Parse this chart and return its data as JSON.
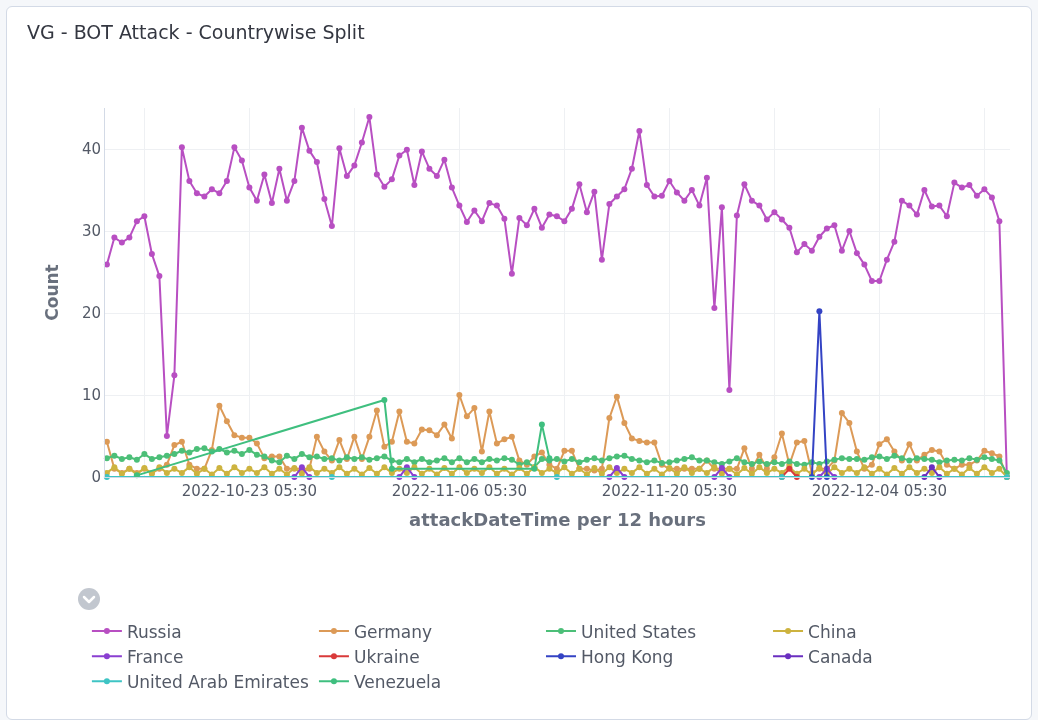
{
  "chart_data": {
    "type": "line",
    "title": "VG - BOT Attack - Countrywise Split",
    "xlabel": "attackDateTime per 12 hours",
    "ylabel": "Count",
    "x": [
      "2022-10-13T17:30",
      "2022-10-14T05:30",
      "2022-10-14T17:30",
      "2022-10-15T05:30",
      "2022-10-15T17:30",
      "2022-10-16T05:30",
      "2022-10-16T17:30",
      "2022-10-17T05:30",
      "2022-10-17T17:30",
      "2022-10-18T05:30",
      "2022-10-18T17:30",
      "2022-10-19T05:30",
      "2022-10-19T17:30",
      "2022-10-20T05:30",
      "2022-10-20T17:30",
      "2022-10-21T05:30",
      "2022-10-21T17:30",
      "2022-10-22T05:30",
      "2022-10-22T17:30",
      "2022-10-23T05:30",
      "2022-10-23T17:30",
      "2022-10-24T05:30",
      "2022-10-24T17:30",
      "2022-10-25T05:30",
      "2022-10-25T17:30",
      "2022-10-26T05:30",
      "2022-10-26T17:30",
      "2022-10-27T05:30",
      "2022-10-27T17:30",
      "2022-10-28T05:30",
      "2022-10-28T17:30",
      "2022-10-29T05:30",
      "2022-10-29T17:30",
      "2022-10-30T05:30",
      "2022-10-30T17:30",
      "2022-10-31T05:30",
      "2022-10-31T17:30",
      "2022-11-01T05:30",
      "2022-11-01T17:30",
      "2022-11-02T05:30",
      "2022-11-02T17:30",
      "2022-11-03T05:30",
      "2022-11-03T17:30",
      "2022-11-04T05:30",
      "2022-11-04T17:30",
      "2022-11-05T05:30",
      "2022-11-05T17:30",
      "2022-11-06T05:30",
      "2022-11-06T17:30",
      "2022-11-07T05:30",
      "2022-11-07T17:30",
      "2022-11-08T05:30",
      "2022-11-08T17:30",
      "2022-11-09T05:30",
      "2022-11-09T17:30",
      "2022-11-10T05:30",
      "2022-11-10T17:30",
      "2022-11-11T05:30",
      "2022-11-11T17:30",
      "2022-11-12T05:30",
      "2022-11-12T17:30",
      "2022-11-13T05:30",
      "2022-11-13T17:30",
      "2022-11-14T05:30",
      "2022-11-14T17:30",
      "2022-11-15T05:30",
      "2022-11-15T17:30",
      "2022-11-16T05:30",
      "2022-11-16T17:30",
      "2022-11-17T05:30",
      "2022-11-17T17:30",
      "2022-11-18T05:30",
      "2022-11-18T17:30",
      "2022-11-19T05:30",
      "2022-11-19T17:30",
      "2022-11-20T05:30",
      "2022-11-20T17:30",
      "2022-11-21T05:30",
      "2022-11-21T17:30",
      "2022-11-22T05:30",
      "2022-11-22T17:30",
      "2022-11-23T05:30",
      "2022-11-23T17:30",
      "2022-11-24T05:30",
      "2022-11-24T17:30",
      "2022-11-25T05:30",
      "2022-11-25T17:30",
      "2022-11-26T05:30",
      "2022-11-26T17:30",
      "2022-11-27T05:30",
      "2022-11-27T17:30",
      "2022-11-28T05:30",
      "2022-11-28T17:30",
      "2022-11-29T05:30",
      "2022-11-29T17:30",
      "2022-11-30T05:30",
      "2022-11-30T17:30",
      "2022-12-01T05:30",
      "2022-12-01T17:30",
      "2022-12-02T05:30",
      "2022-12-02T17:30",
      "2022-12-03T05:30",
      "2022-12-03T17:30",
      "2022-12-04T05:30",
      "2022-12-04T17:30",
      "2022-12-05T05:30",
      "2022-12-05T17:30",
      "2022-12-06T05:30",
      "2022-12-06T17:30",
      "2022-12-07T05:30",
      "2022-12-07T17:30",
      "2022-12-08T05:30",
      "2022-12-08T17:30",
      "2022-12-09T05:30",
      "2022-12-09T17:30",
      "2022-12-10T05:30",
      "2022-12-10T17:30",
      "2022-12-11T05:30",
      "2022-12-11T17:30",
      "2022-12-12T05:30",
      "2022-12-12T17:30"
    ],
    "series": [
      {
        "name": "Russia",
        "color": "#b84fc2",
        "values": [
          25.9,
          29.2,
          28.6,
          29.2,
          31.2,
          31.8,
          27.2,
          24.5,
          5.0,
          12.4,
          40.2,
          36.1,
          34.6,
          34.2,
          35.1,
          34.6,
          36.1,
          40.2,
          38.6,
          35.3,
          33.7,
          36.9,
          33.4,
          37.6,
          33.7,
          36.1,
          42.6,
          39.8,
          38.4,
          33.9,
          30.6,
          40.1,
          36.7,
          38.0,
          40.8,
          43.9,
          36.9,
          35.4,
          36.3,
          39.2,
          39.9,
          35.6,
          39.7,
          37.6,
          36.7,
          38.7,
          35.3,
          33.1,
          31.1,
          32.5,
          31.2,
          33.4,
          33.1,
          31.5,
          24.8,
          31.6,
          30.7,
          32.7,
          30.4,
          32.0,
          31.8,
          31.2,
          32.7,
          35.7,
          32.3,
          34.8,
          26.5,
          33.3,
          34.2,
          35.1,
          37.6,
          42.2,
          35.6,
          34.2,
          34.3,
          36.1,
          34.7,
          33.7,
          35.0,
          33.1,
          36.5,
          20.6,
          32.9,
          10.6,
          31.9,
          35.7,
          33.7,
          33.1,
          31.4,
          32.3,
          31.4,
          30.4,
          27.4,
          28.4,
          27.6,
          29.3,
          30.3,
          30.7,
          27.6,
          30.0,
          27.3,
          25.9,
          23.9,
          23.9,
          26.5,
          28.7,
          33.7,
          33.1,
          32.0,
          35.0,
          33.0,
          33.1,
          31.8,
          35.9,
          35.3,
          35.6,
          34.3,
          35.1,
          34.1,
          31.2,
          0
        ]
      },
      {
        "name": "Germany",
        "color": "#dc9a57",
        "values": [
          4.3,
          1,
          0.5,
          1,
          0.5,
          1,
          0.5,
          1,
          1.5,
          3.9,
          4.3,
          1.5,
          1,
          1,
          3.3,
          8.7,
          6.8,
          5.1,
          4.8,
          4.8,
          4.1,
          2.3,
          2.5,
          2.5,
          1,
          1,
          1,
          1,
          4.9,
          3.1,
          2,
          4.5,
          2.2,
          4.9,
          2.2,
          4.9,
          8.1,
          3.7,
          4.3,
          8,
          4.3,
          4.1,
          5.8,
          5.7,
          5.1,
          6.4,
          4.7,
          10,
          7.4,
          8.4,
          3.1,
          8,
          4.1,
          4.6,
          4.9,
          2,
          1.5,
          2.5,
          3,
          1.5,
          1,
          3.2,
          3.2,
          1,
          1,
          0.8,
          1,
          7.2,
          9.8,
          6.6,
          4.7,
          4.4,
          4.2,
          4.2,
          1.5,
          1,
          1,
          1,
          1,
          1,
          2,
          1,
          1,
          1,
          1,
          3.5,
          1,
          2.7,
          1,
          2.4,
          5.3,
          1.5,
          4.2,
          4.4,
          0.5,
          1,
          1,
          2,
          7.8,
          6.6,
          3.1,
          1,
          1.5,
          4,
          4.6,
          3.1,
          2,
          4,
          2,
          2.7,
          3.3,
          3.1,
          1.5,
          1,
          1.5,
          1.5,
          2,
          3.2,
          2.9,
          2.5,
          0
        ]
      },
      {
        "name": "United States",
        "color": "#4cbf78",
        "values": [
          2.3,
          2.6,
          2.2,
          2.4,
          2.1,
          2.8,
          2.2,
          2.4,
          2.6,
          2.8,
          3.2,
          3.0,
          3.4,
          3.5,
          3.1,
          3.4,
          3.0,
          3.2,
          2.8,
          3.3,
          2.7,
          2.5,
          2.0,
          1.8,
          2.6,
          2.2,
          2.8,
          2.4,
          2.5,
          2.2,
          2.3,
          2.0,
          2.4,
          2.2,
          2.4,
          2.1,
          2.3,
          2.5,
          2.0,
          1.8,
          2.2,
          1.8,
          2.2,
          1.8,
          2.0,
          2.3,
          1.8,
          2.3,
          1.8,
          2.2,
          1.8,
          2.2,
          2.0,
          2.3,
          2.1,
          1.5,
          1.8,
          1.2,
          2.2,
          2.0,
          2.2,
          1.9,
          2.2,
          1.8,
          2.1,
          2.3,
          2.0,
          2.3,
          2.5,
          2.6,
          2.2,
          2.0,
          1.8,
          2.0,
          1.7,
          1.8,
          2.0,
          2.2,
          2.4,
          2.0,
          2.0,
          1.8,
          1.6,
          1.9,
          2.3,
          1.8,
          1.6,
          1.9,
          1.6,
          1.8,
          1.6,
          1.9,
          1.6,
          1.5,
          1.8,
          1.6,
          1.9,
          2.1,
          2.3,
          2.2,
          2.2,
          2.1,
          2.4,
          2.5,
          2.2,
          2.6,
          2.3,
          2.0,
          2.3,
          2.2,
          2.1,
          1.8,
          2.0,
          2.1,
          2.0,
          2.3,
          2.1,
          2.4,
          2.2,
          2.0,
          0.5
        ]
      },
      {
        "name": "China",
        "color": "#cdb33f",
        "values": [
          0.5,
          1.2,
          0.4,
          1.0,
          0.3,
          1.1,
          0.4,
          1.2,
          0.5,
          1.0,
          0.5,
          1.2,
          0.4,
          1.0,
          0.3,
          1.1,
          0.4,
          1.2,
          0.5,
          1.0,
          0.5,
          1.2,
          0.4,
          1.0,
          0.3,
          1.1,
          0.4,
          1.2,
          0.5,
          1.0,
          0.5,
          1.2,
          0.4,
          1.0,
          0.3,
          1.1,
          0.4,
          1.2,
          0.5,
          1.0,
          0.5,
          1.2,
          0.4,
          1.0,
          0.3,
          1.1,
          0.4,
          1.2,
          0.5,
          1.0,
          0.5,
          1.2,
          0.4,
          1.0,
          0.3,
          1.1,
          0.4,
          1.2,
          0.5,
          1.0,
          0.5,
          1.2,
          0.4,
          1.0,
          0.3,
          1.1,
          0.4,
          1.2,
          0.5,
          1.0,
          0.5,
          1.2,
          0.4,
          1.0,
          0.3,
          1.1,
          0.4,
          1.2,
          0.5,
          1.0,
          0.5,
          1.2,
          0.4,
          1.0,
          0.3,
          1.1,
          0.4,
          1.2,
          0.5,
          1.0,
          0.5,
          1.2,
          0.4,
          1.0,
          0.3,
          1.1,
          0.4,
          1.2,
          0.5,
          1.0,
          0.5,
          1.2,
          0.4,
          1.0,
          0.3,
          1.1,
          0.4,
          1.2,
          0.5,
          1.0,
          0.5,
          1.2,
          0.4,
          1.0,
          0.3,
          1.1,
          0.4,
          1.2,
          0.5,
          1.0,
          0
        ]
      },
      {
        "name": "France",
        "color": "#8a3fd1",
        "x": [
          "2022-10-26T05:30",
          "2022-10-26T17:30",
          "2022-10-27T05:30",
          "2022-10-30T05:30",
          "2022-11-02T05:30",
          "2022-11-02T17:30",
          "2022-11-03T05:30",
          "2022-11-10T05:30",
          "2022-11-16T05:30",
          "2022-11-16T17:30",
          "2022-11-17T05:30",
          "2022-11-20T05:30",
          "2022-11-23T05:30",
          "2022-11-23T17:30",
          "2022-11-24T05:30",
          "2022-11-27T05:30",
          "2022-11-30T05:30",
          "2022-11-30T17:30",
          "2022-12-01T05:30"
        ],
        "values": [
          0,
          1.2,
          0,
          null,
          0,
          1.2,
          0,
          null,
          0,
          1.1,
          0,
          null,
          0,
          1.1,
          0,
          null,
          0,
          1.0,
          0
        ]
      },
      {
        "name": "Ukraine",
        "color": "#d93a3a",
        "x": [
          "2022-11-27T17:30",
          "2022-11-28T05:30",
          "2022-11-28T17:30"
        ],
        "values": [
          0,
          1.0,
          0
        ]
      },
      {
        "name": "Hong Kong",
        "color": "#3443c4",
        "x": [
          "2022-11-29T17:30",
          "2022-11-30T05:30",
          "2022-11-30T17:30"
        ],
        "values": [
          0,
          20.2,
          0
        ]
      },
      {
        "name": "Canada",
        "color": "#6a2fc0",
        "x": [
          "2022-12-07T05:30",
          "2022-12-07T17:30",
          "2022-12-08T05:30"
        ],
        "values": [
          0,
          1.2,
          0
        ]
      },
      {
        "name": "United Arab Emirates",
        "color": "#3ec4c4",
        "x": [
          "2022-10-13T17:30",
          "2022-10-28T17:30",
          "2022-11-12T17:30",
          "2022-11-27T17:30",
          "2022-12-12T17:30"
        ],
        "values": [
          0,
          0,
          0,
          0,
          0
        ]
      },
      {
        "name": "Venezuela",
        "color": "#3fbf7f",
        "x": [
          "2022-10-15T17:30",
          "2022-11-01T05:30",
          "2022-11-01T17:30",
          "2022-11-11T05:30",
          "2022-11-11T17:30",
          "2022-11-12T05:30"
        ],
        "values": [
          0.2,
          9.4,
          1,
          1,
          6.4,
          2.3
        ]
      }
    ],
    "xlim": [
      "2022-10-13T14:30",
      "2022-12-12T22:30"
    ],
    "xticks": [
      {
        "value": "2022-10-16T05:30",
        "label": null
      },
      {
        "value": "2022-10-23T05:30",
        "label": "2022-10-23 05:30"
      },
      {
        "value": "2022-10-30T05:30",
        "label": null
      },
      {
        "value": "2022-11-06T05:30",
        "label": "2022-11-06 05:30"
      },
      {
        "value": "2022-11-13T05:30",
        "label": null
      },
      {
        "value": "2022-11-20T05:30",
        "label": "2022-11-20 05:30"
      },
      {
        "value": "2022-11-27T05:30",
        "label": null
      },
      {
        "value": "2022-12-04T05:30",
        "label": "2022-12-04 05:30"
      },
      {
        "value": "2022-12-11T05:30",
        "label": null
      }
    ],
    "ylim": [
      0,
      45
    ],
    "yticks": [
      0,
      10,
      20,
      30,
      40
    ],
    "grid": true,
    "legend": "bottom",
    "marker": "circle",
    "line_style": "solid"
  }
}
